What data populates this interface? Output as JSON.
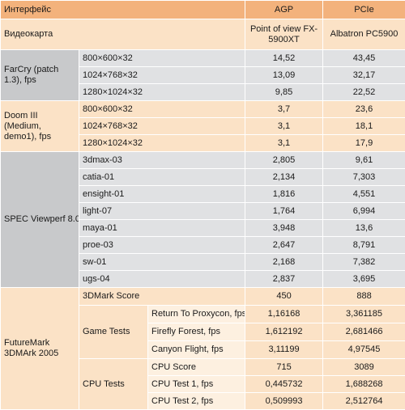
{
  "header": {
    "interface": "Интерфейс",
    "agp": "AGP",
    "pcie": "PCIe"
  },
  "subheader": {
    "label": "Видеокарта",
    "agp_card": "Point of view FX-5900XT",
    "pcie_card": "Albatron PC5900"
  },
  "farcry": {
    "label": "FarCry (patch 1.3), fps",
    "rows": [
      {
        "res": "800×600×32",
        "agp": "14,52",
        "pcie": "43,45"
      },
      {
        "res": "1024×768×32",
        "agp": "13,09",
        "pcie": "32,17"
      },
      {
        "res": "1280×1024×32",
        "agp": "9,85",
        "pcie": "22,52"
      }
    ]
  },
  "doom": {
    "label": "Doom III (Medium, demo1), fps",
    "rows": [
      {
        "res": "800×600×32",
        "agp": "3,7",
        "pcie": "23,6"
      },
      {
        "res": "1024×768×32",
        "agp": "3,1",
        "pcie": "18,1"
      },
      {
        "res": "1280×1024×32",
        "agp": "3,1",
        "pcie": "17,9"
      }
    ]
  },
  "spec": {
    "label": "SPEC Viewperf 8.0.1",
    "rows": [
      {
        "test": "3dmax-03",
        "agp": "2,805",
        "pcie": "9,61"
      },
      {
        "test": "catia-01",
        "agp": "2,134",
        "pcie": "7,303"
      },
      {
        "test": "ensight-01",
        "agp": "1,816",
        "pcie": "4,551"
      },
      {
        "test": "light-07",
        "agp": "1,764",
        "pcie": "6,994"
      },
      {
        "test": "maya-01",
        "agp": "3,948",
        "pcie": "13,6"
      },
      {
        "test": "proe-03",
        "agp": "2,647",
        "pcie": "8,791"
      },
      {
        "test": "sw-01",
        "agp": "2,168",
        "pcie": "7,382"
      },
      {
        "test": "ugs-04",
        "agp": "2,837",
        "pcie": "3,695"
      }
    ]
  },
  "futuremark": {
    "label": "FutureMark 3DMArk 2005",
    "score": {
      "label": "3DMark Score",
      "agp": "450",
      "pcie": "888"
    },
    "game_tests": {
      "label": "Game Tests",
      "rows": [
        {
          "test": "Return To Proxycon, fps",
          "agp": "1,16168",
          "pcie": "3,361185"
        },
        {
          "test": "Firefly Forest, fps",
          "agp": "1,612192",
          "pcie": "2,681466"
        },
        {
          "test": "Canyon Flight, fps",
          "agp": "3,11199",
          "pcie": "4,97545"
        }
      ]
    },
    "cpu_tests": {
      "label": "CPU Tests",
      "rows": [
        {
          "test": "CPU Score",
          "agp": "715",
          "pcie": "3089"
        },
        {
          "test": "CPU Test 1, fps",
          "agp": "0,445732",
          "pcie": "1,688268"
        },
        {
          "test": "CPU Test 2, fps",
          "agp": "0,509993",
          "pcie": "2,512764"
        }
      ]
    }
  }
}
